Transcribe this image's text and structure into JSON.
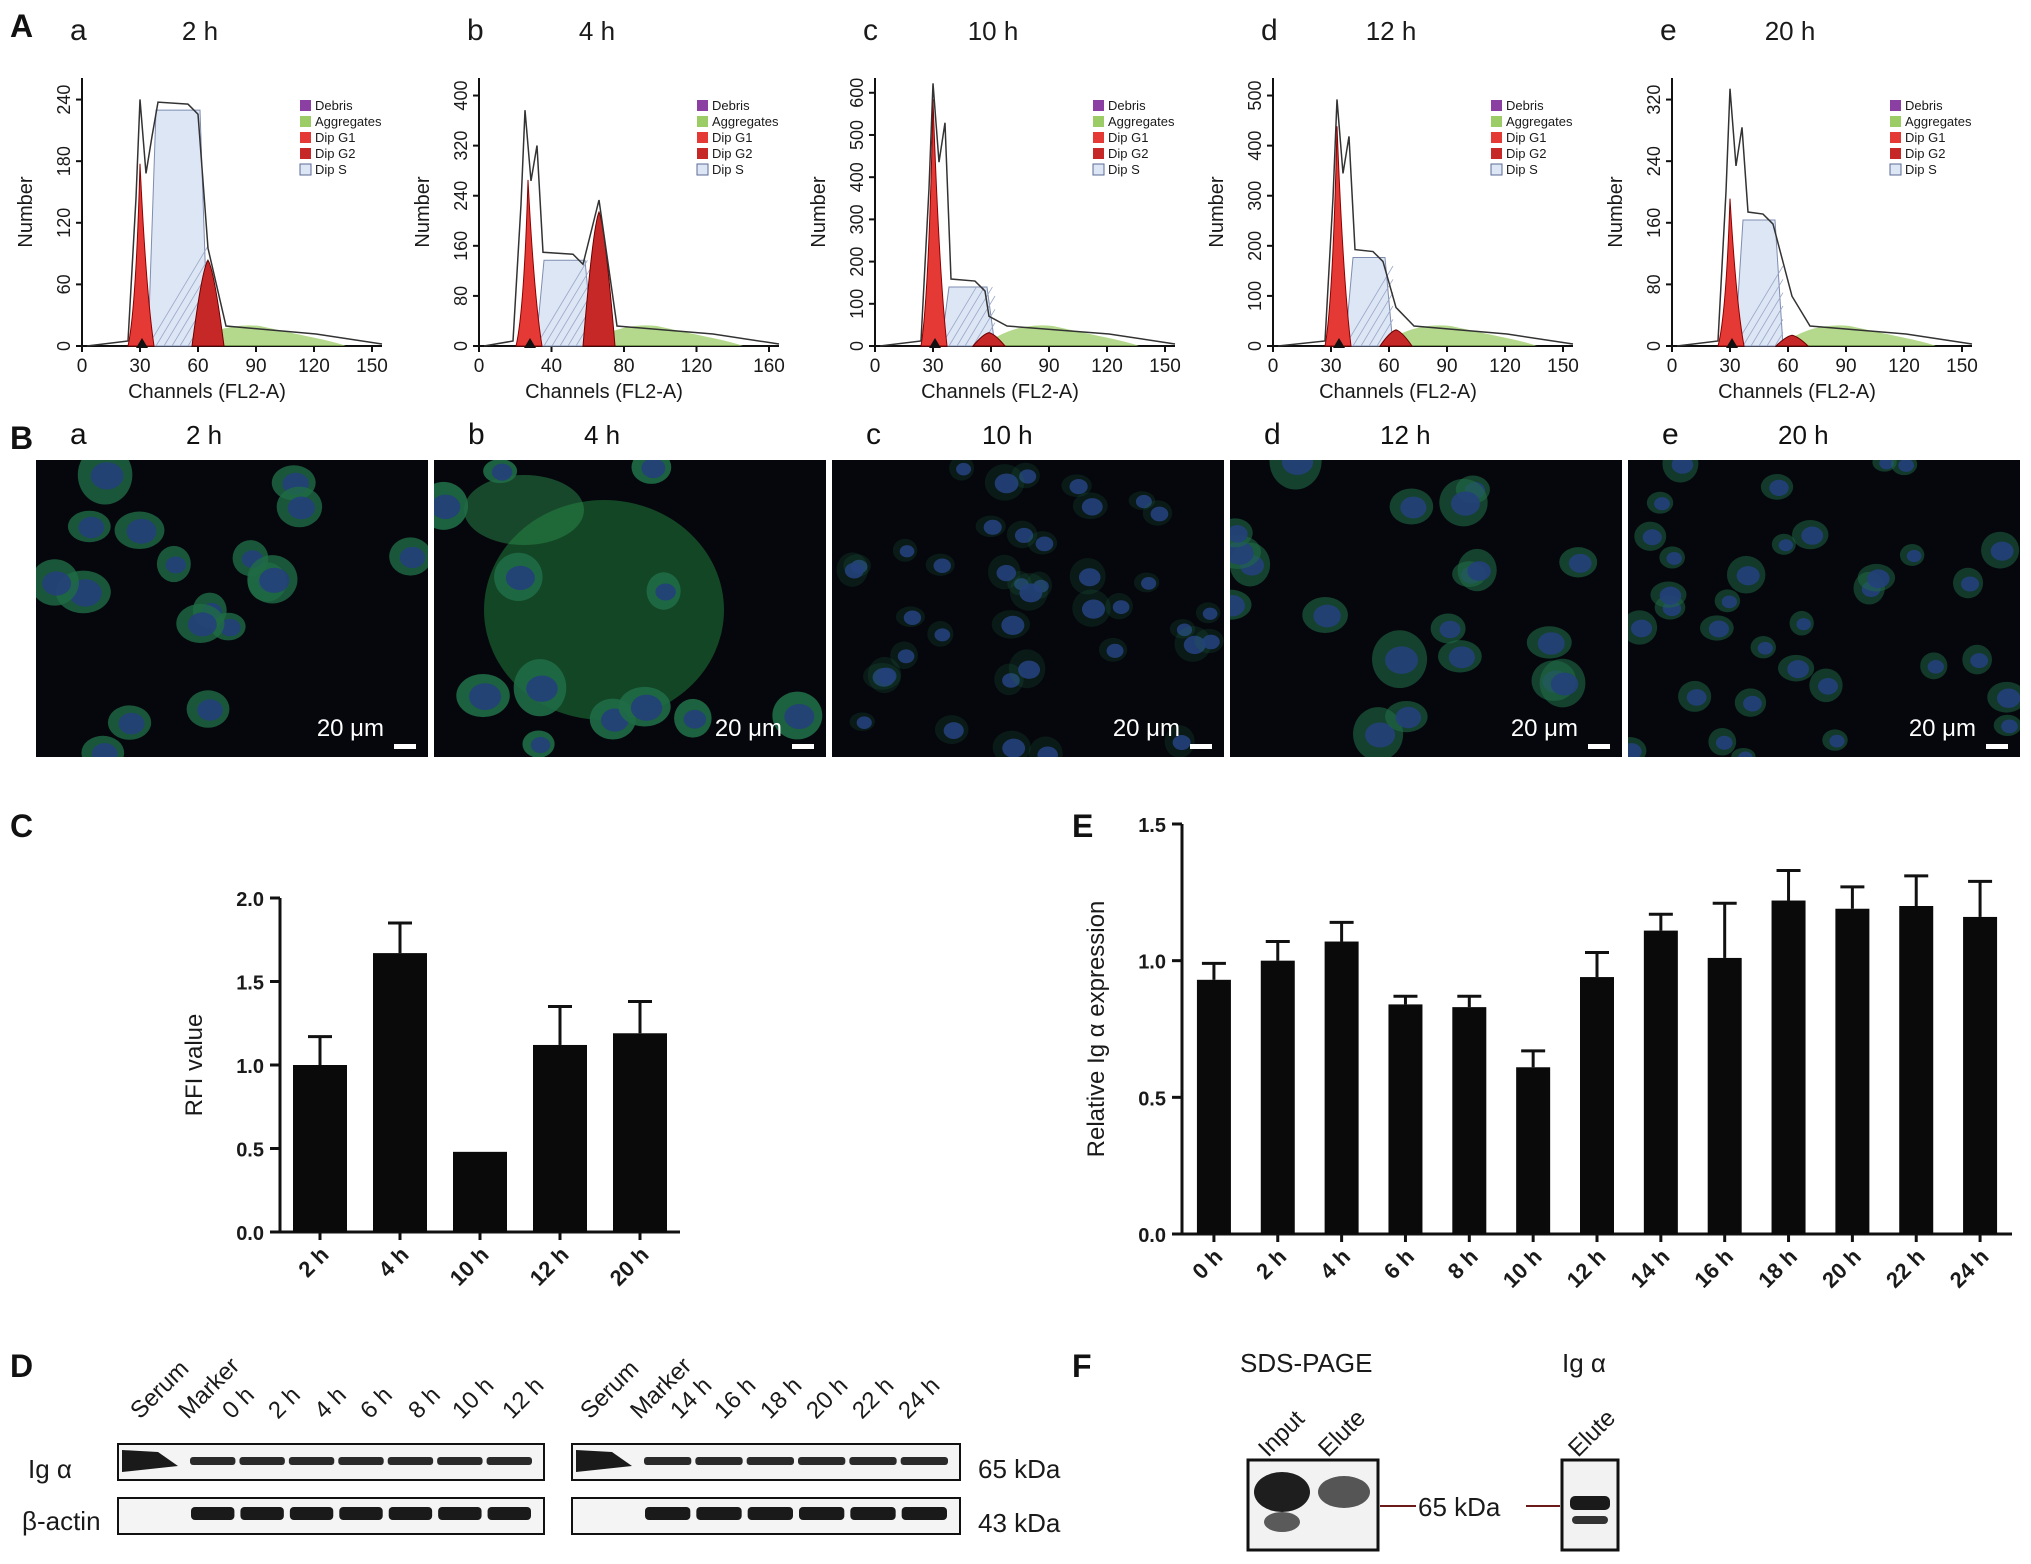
{
  "panel_labels": {
    "A": "A",
    "B": "B",
    "C": "C",
    "D": "D",
    "E": "E",
    "F": "F"
  },
  "panelA": {
    "xlabel": "Channels (FL2-A)",
    "ylabel": "Number",
    "legend": [
      "Debris",
      "Aggregates",
      "Dip G1",
      "Dip G2",
      "Dip S"
    ],
    "colors": {
      "debris": "#8b3fa3",
      "aggregates": "#9ccc65",
      "g1": "#e53935",
      "g2": "#c62828",
      "s": "#dde6f5"
    },
    "subplots": [
      {
        "letter": "a",
        "time": "2 h",
        "yticks": [
          "0",
          "60",
          "120",
          "180",
          "240"
        ],
        "xticks": [
          "0",
          "30",
          "60",
          "90",
          "120",
          "150"
        ]
      },
      {
        "letter": "b",
        "time": "4 h",
        "yticks": [
          "0",
          "80",
          "160",
          "240",
          "320",
          "400"
        ],
        "xticks": [
          "0",
          "40",
          "80",
          "120",
          "160"
        ]
      },
      {
        "letter": "c",
        "time": "10 h",
        "yticks": [
          "0",
          "100",
          "200",
          "300",
          "400",
          "500",
          "600"
        ],
        "xticks": [
          "0",
          "30",
          "60",
          "90",
          "120",
          "150"
        ]
      },
      {
        "letter": "d",
        "time": "12 h",
        "yticks": [
          "0",
          "100",
          "200",
          "300",
          "400",
          "500"
        ],
        "xticks": [
          "0",
          "30",
          "60",
          "90",
          "120",
          "150"
        ]
      },
      {
        "letter": "e",
        "time": "20 h",
        "yticks": [
          "0",
          "80",
          "160",
          "240",
          "320"
        ],
        "xticks": [
          "0",
          "30",
          "60",
          "90",
          "120",
          "150"
        ]
      }
    ]
  },
  "panelB": {
    "scale": "20 μm",
    "subplots": [
      {
        "letter": "a",
        "time": "2 h"
      },
      {
        "letter": "b",
        "time": "4 h"
      },
      {
        "letter": "c",
        "time": "10 h"
      },
      {
        "letter": "d",
        "time": "12 h"
      },
      {
        "letter": "e",
        "time": "20 h"
      }
    ]
  },
  "chart_data": [
    {
      "panel": "C",
      "type": "bar",
      "categories": [
        "2 h",
        "4 h",
        "10 h",
        "12 h",
        "20 h"
      ],
      "values": [
        1.0,
        1.67,
        0.48,
        1.12,
        1.19
      ],
      "errors": [
        0.17,
        0.18,
        0.0,
        0.23,
        0.19
      ],
      "ylabel": "RFI value",
      "ylim": [
        0,
        2.0
      ],
      "yticks": [
        "0.0",
        "0.5",
        "1.0",
        "1.5",
        "2.0"
      ]
    },
    {
      "panel": "E",
      "type": "bar",
      "categories": [
        "0 h",
        "2 h",
        "4 h",
        "6 h",
        "8 h",
        "10 h",
        "12 h",
        "14 h",
        "16 h",
        "18 h",
        "20 h",
        "22 h",
        "24 h"
      ],
      "values": [
        0.93,
        1.0,
        1.07,
        0.84,
        0.83,
        0.61,
        0.94,
        1.11,
        1.01,
        1.22,
        1.19,
        1.2,
        1.16
      ],
      "errors": [
        0.06,
        0.07,
        0.07,
        0.03,
        0.04,
        0.06,
        0.09,
        0.06,
        0.2,
        0.11,
        0.08,
        0.11,
        0.13
      ],
      "ylabel": "Relative Ig α expression",
      "ylim": [
        0,
        1.5
      ],
      "yticks": [
        "0.0",
        "0.5",
        "1.0",
        "1.5"
      ]
    }
  ],
  "panelD": {
    "lanes_left": [
      "Serum",
      "Marker",
      "0 h",
      "2 h",
      "4 h",
      "6 h",
      "8 h",
      "10 h",
      "12 h"
    ],
    "lanes_right": [
      "Serum",
      "Marker",
      "14 h",
      "16 h",
      "18 h",
      "20 h",
      "22 h",
      "24 h"
    ],
    "row1": "Ig α",
    "row2": "β-actin",
    "kda1": "65 kDa",
    "kda2": "43 kDa"
  },
  "panelF": {
    "title1": "SDS-PAGE",
    "title2": "Ig α",
    "lanes1": [
      "Input",
      "Elute"
    ],
    "lanes2": [
      "Elute"
    ],
    "kda": "65 kDa"
  }
}
